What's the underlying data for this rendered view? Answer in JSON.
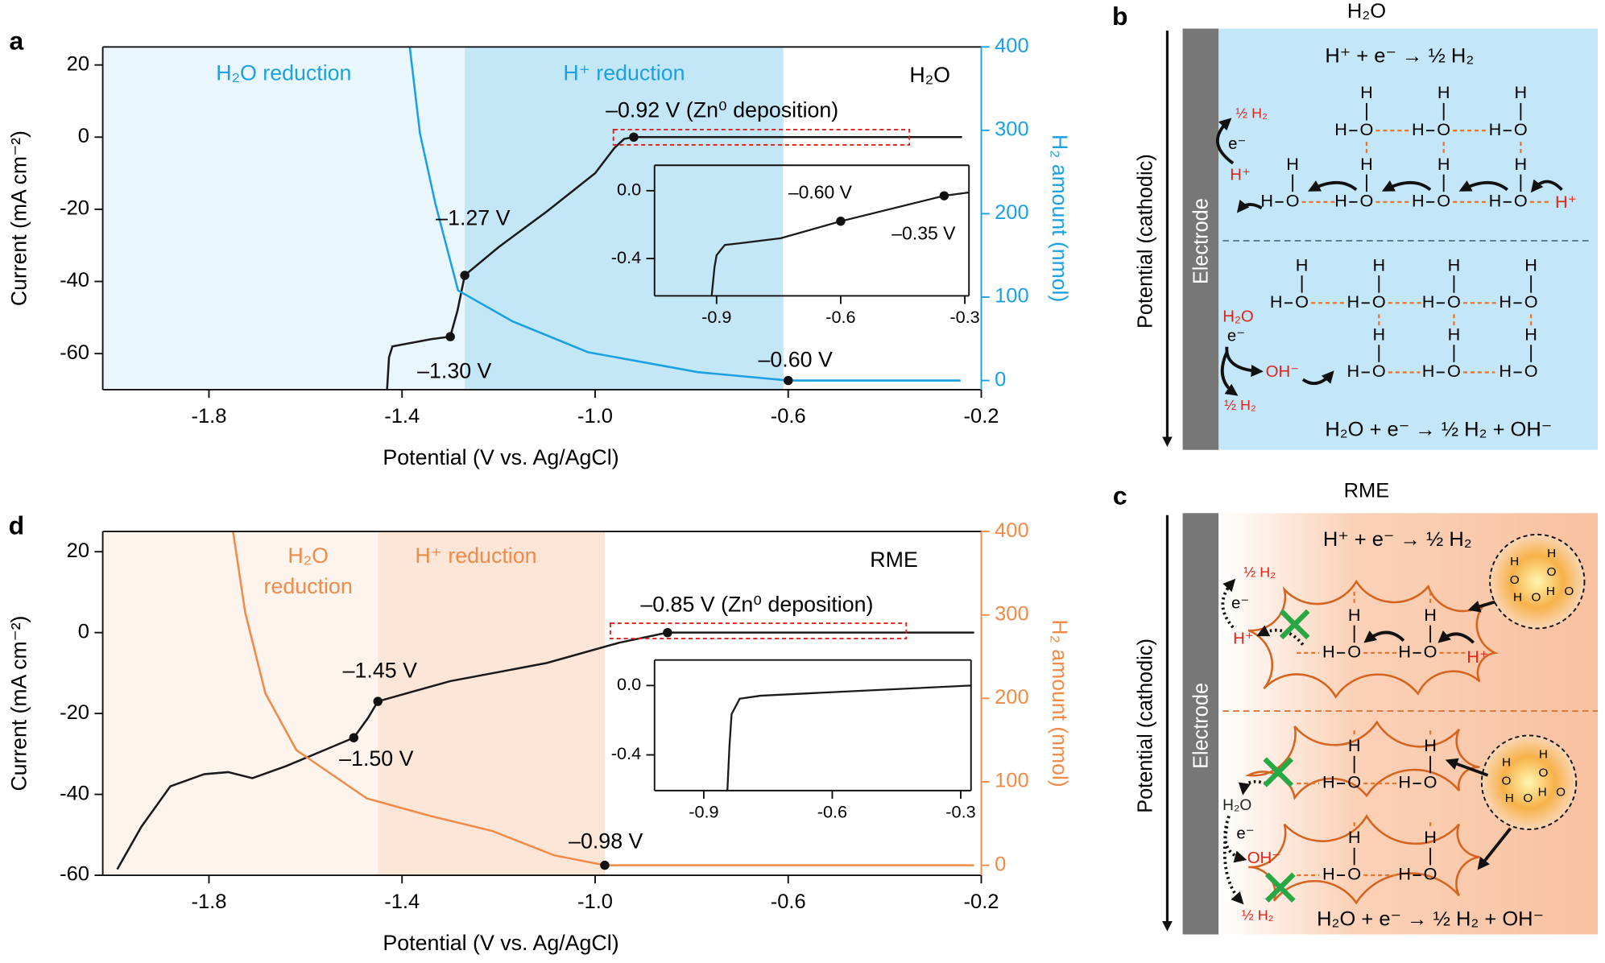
{
  "chart_data": [
    {
      "type": "line",
      "panel": "a",
      "label": "H₂O",
      "xlabel": "Potential (V vs. Ag/AgCl)",
      "ylabel": "Current (mA cm⁻²)",
      "y2label": "H₂ amount (nmol)",
      "axis_color": "#1ba1e2",
      "xlim": [
        -2.02,
        -0.2
      ],
      "ylim": [
        -70,
        25
      ],
      "y2lim": [
        -11,
        400
      ],
      "xticks": [
        -1.8,
        -1.4,
        {
          "value": -1,
          "label": "-1.0"
        },
        -0.6,
        -0.2
      ],
      "yticks": [
        -60,
        -40,
        -20,
        0,
        20
      ],
      "y2ticks": [
        0,
        100,
        200,
        300,
        400
      ],
      "regions": [
        {
          "label": "H₂O reduction",
          "x": [
            -2.02,
            -1.27
          ],
          "color": "#eaf6fd"
        },
        {
          "label": "H⁺ reduction",
          "x": [
            -1.27,
            -0.61
          ],
          "color": "#c4e7f8"
        }
      ],
      "series": [
        {
          "color": "#1a1a1a",
          "x": [
            -1.431,
            -1.427,
            -1.42,
            -1.38,
            -1.34,
            -1.3,
            -1.285,
            -1.27,
            -1.2,
            -1.1,
            -1.0,
            -0.96,
            -0.94,
            -0.92,
            -0.6,
            -0.24
          ],
          "values": [
            -70,
            -61,
            -58,
            -57,
            -56,
            -55.3,
            -48,
            -38.3,
            -30.5,
            -20.6,
            -10,
            -3,
            -0.5,
            0,
            0,
            0
          ]
        },
        {
          "color": "#1ba1e2",
          "axis": "y2",
          "x": [
            -1.384,
            -1.363,
            -1.331,
            -1.284,
            -1.171,
            -1.015,
            -0.787,
            -0.6,
            -0.243
          ],
          "values": [
            400,
            297,
            212,
            108,
            71,
            34,
            10,
            0,
            0
          ]
        }
      ],
      "annotations": [
        {
          "text": "–0.92 V (Zn⁰ deposition)",
          "x": -0.92,
          "y": 0
        },
        {
          "text": "–1.27 V",
          "x": -1.27,
          "y": -38.3
        },
        {
          "text": "–1.30 V",
          "x": -1.3,
          "y": -55.3
        },
        {
          "text": "–0.60 V",
          "x": -0.6,
          "y": 0,
          "axis": "y2"
        }
      ]
    },
    {
      "type": "line",
      "xlim": [
        -1.05,
        -0.29
      ],
      "ylim": [
        -0.62,
        0.15
      ],
      "xticks": [
        -0.9,
        -0.6,
        -0.3
      ],
      "yticks": [
        -0.4,
        {
          "value": 0,
          "label": "0.0"
        }
      ],
      "regions": [
        {
          "x": [
            -1.05,
            -0.74
          ],
          "color": "#c4e7f8"
        }
      ],
      "series": [
        {
          "color": "#1a1a1a",
          "x": [
            -0.912,
            -0.905,
            -0.9,
            -0.88,
            -0.844,
            -0.745,
            -0.6,
            -0.35,
            -0.29
          ],
          "values": [
            -0.62,
            -0.45,
            -0.38,
            -0.32,
            -0.31,
            -0.28,
            -0.18,
            -0.03,
            -0.01
          ]
        }
      ],
      "annotations": [
        {
          "text": "–0.60 V",
          "x": -0.6,
          "y": -0.18
        },
        {
          "text": "–0.35 V",
          "x": -0.35,
          "y": -0.03
        }
      ]
    },
    {
      "type": "line",
      "panel": "d",
      "label": "RME",
      "xlabel": "Potential (V vs. Ag/AgCl)",
      "ylabel": "Current (mA cm⁻²)",
      "y2label": "H₂ amount (nmol)",
      "axis_color": "#f28a48",
      "xlim": [
        -2.02,
        -0.2
      ],
      "ylim": [
        -60,
        25
      ],
      "y2lim": [
        -12,
        400
      ],
      "xticks": [
        -1.8,
        -1.4,
        {
          "value": -1,
          "label": "-1.0"
        },
        -0.6,
        -0.2
      ],
      "yticks": [
        -60,
        -40,
        -20,
        0,
        20
      ],
      "y2ticks": [
        0,
        100,
        200,
        300,
        400
      ],
      "regions": [
        {
          "label": [
            "H₂O",
            "reduction"
          ],
          "x": [
            -2.02,
            -1.45
          ],
          "color": "#fdf4ee"
        },
        {
          "label": "H⁺ reduction",
          "x": [
            -1.45,
            -0.98
          ],
          "color": "#fce6d8"
        }
      ],
      "series": [
        {
          "color": "#1a1a1a",
          "x": [
            -1.99,
            -1.94,
            -1.88,
            -1.81,
            -1.76,
            -1.71,
            -1.64,
            -1.57,
            -1.5,
            -1.47,
            -1.45,
            -1.3,
            -1.1,
            -0.95,
            -0.85,
            -0.215
          ],
          "values": [
            -58.5,
            -48,
            -38,
            -35,
            -34.5,
            -36,
            -33,
            -29.5,
            -26,
            -21,
            -17,
            -12,
            -7.5,
            -2.5,
            0,
            0
          ]
        },
        {
          "color": "#f28a48",
          "axis": "y2",
          "x": [
            -1.75,
            -1.725,
            -1.683,
            -1.619,
            -1.473,
            -1.341,
            -1.213,
            -1.085,
            -0.98,
            -0.215
          ],
          "values": [
            400,
            303,
            206,
            138,
            80,
            59,
            41,
            12,
            0,
            0
          ]
        }
      ],
      "annotations": [
        {
          "text": "–0.85 V (Zn⁰ deposition)",
          "x": -0.85,
          "y": 0
        },
        {
          "text": "–1.45 V",
          "x": -1.45,
          "y": -17
        },
        {
          "text": "–1.50 V",
          "x": -1.5,
          "y": -26
        },
        {
          "text": "–0.98 V",
          "x": -0.98,
          "y": 0,
          "axis": "y2"
        }
      ]
    },
    {
      "type": "line",
      "xlim": [
        -1.015,
        -0.276
      ],
      "ylim": [
        -0.606,
        0.147
      ],
      "xticks": [
        -0.9,
        -0.6,
        -0.3
      ],
      "yticks": [
        -0.4,
        {
          "value": 0,
          "label": "0.0"
        }
      ],
      "series": [
        {
          "color": "#1a1a1a",
          "x": [
            -0.845,
            -0.84,
            -0.835,
            -0.816,
            -0.768,
            -0.624,
            -0.276
          ],
          "values": [
            -0.606,
            -0.35,
            -0.165,
            -0.076,
            -0.059,
            -0.041,
            0
          ]
        }
      ]
    }
  ],
  "diagrams": [
    {
      "panel": "b",
      "title": "H₂O",
      "axis_label": "Potential (cathodic)",
      "electrode": "Electrode",
      "top_equation": "H⁺ + e⁻ → ½ H₂",
      "bottom_equation": "H₂O + e⁻ → ½ H₂ + OH⁻",
      "species": {
        "H": "H",
        "O": "O",
        "proton": "H⁺",
        "hydrogen": "½ H₂",
        "electron": "e⁻",
        "water": "H₂O",
        "hydroxide": "OH⁻"
      }
    },
    {
      "panel": "c",
      "title": "RME",
      "axis_label": "Potential (cathodic)",
      "electrode": "Electrode",
      "top_equation": "H⁺ + e⁻ → ½ H₂",
      "bottom_equation": "H₂O + e⁻ → ½ H₂ + OH⁻",
      "species": {
        "H": "H",
        "O": "O",
        "proton": "H⁺",
        "hydrogen": "½ H₂",
        "electron": "e⁻",
        "water": "H₂O",
        "hydroxide": "OH⁻"
      }
    }
  ]
}
